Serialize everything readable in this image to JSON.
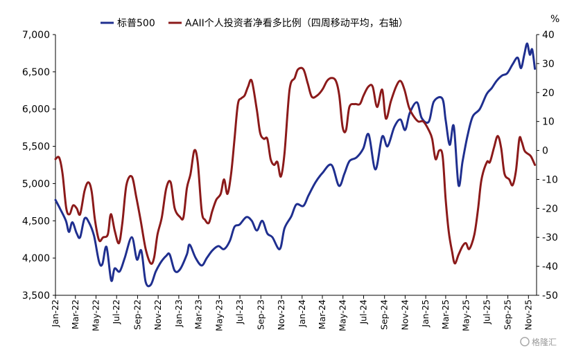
{
  "chart_data": {
    "type": "line",
    "title": "",
    "unit_right": "%",
    "legend_position": "top",
    "grid": false,
    "x_tick_labels": [
      "Jan-22",
      "Mar-22",
      "May-22",
      "Jul-22",
      "Sep-22",
      "Nov-22",
      "Jan-23",
      "Mar-23",
      "May-23",
      "Jul-23",
      "Sep-23",
      "Nov-23",
      "Jan-24",
      "Mar-24",
      "May-24",
      "Jul-24",
      "Sep-24",
      "Nov-24",
      "Jan-25",
      "Mar-25",
      "May-25",
      "Jul-25",
      "Sep-25",
      "Nov-25"
    ],
    "x_range": [
      "2022-01",
      "2025-11"
    ],
    "y_left": {
      "min": 3500,
      "max": 7000,
      "step": 500,
      "tick_labels": [
        "3,500",
        "4,000",
        "4,500",
        "5,000",
        "5,500",
        "6,000",
        "6,500",
        "7,000"
      ]
    },
    "y_right": {
      "min": -50,
      "max": 40,
      "step": 10,
      "tick_labels": [
        "-50",
        "-40",
        "-30",
        "-20",
        "-10",
        "0",
        "10",
        "20",
        "30",
        "40"
      ]
    },
    "series": [
      {
        "name": "标普500",
        "axis": "left",
        "color": "#1f2f8f",
        "points": [
          [
            "2022-01-01",
            4780
          ],
          [
            "2022-01-15",
            4660
          ],
          [
            "2022-02-01",
            4500
          ],
          [
            "2022-02-10",
            4350
          ],
          [
            "2022-02-20",
            4480
          ],
          [
            "2022-03-05",
            4330
          ],
          [
            "2022-03-15",
            4280
          ],
          [
            "2022-03-28",
            4530
          ],
          [
            "2022-04-10",
            4480
          ],
          [
            "2022-04-25",
            4300
          ],
          [
            "2022-05-10",
            3950
          ],
          [
            "2022-05-20",
            3920
          ],
          [
            "2022-06-01",
            4150
          ],
          [
            "2022-06-15",
            3700
          ],
          [
            "2022-06-25",
            3860
          ],
          [
            "2022-07-10",
            3820
          ],
          [
            "2022-07-25",
            4000
          ],
          [
            "2022-08-15",
            4280
          ],
          [
            "2022-08-30",
            3980
          ],
          [
            "2022-09-12",
            4100
          ],
          [
            "2022-09-25",
            3680
          ],
          [
            "2022-10-10",
            3640
          ],
          [
            "2022-10-25",
            3820
          ],
          [
            "2022-11-10",
            3950
          ],
          [
            "2022-11-25",
            4030
          ],
          [
            "2022-12-05",
            4050
          ],
          [
            "2022-12-20",
            3830
          ],
          [
            "2023-01-05",
            3850
          ],
          [
            "2023-01-25",
            4050
          ],
          [
            "2023-02-02",
            4180
          ],
          [
            "2023-02-20",
            4000
          ],
          [
            "2023-03-10",
            3900
          ],
          [
            "2023-03-25",
            4000
          ],
          [
            "2023-04-10",
            4100
          ],
          [
            "2023-04-28",
            4160
          ],
          [
            "2023-05-15",
            4120
          ],
          [
            "2023-06-01",
            4230
          ],
          [
            "2023-06-15",
            4420
          ],
          [
            "2023-06-30",
            4450
          ],
          [
            "2023-07-20",
            4550
          ],
          [
            "2023-08-05",
            4500
          ],
          [
            "2023-08-20",
            4370
          ],
          [
            "2023-09-05",
            4500
          ],
          [
            "2023-09-20",
            4330
          ],
          [
            "2023-10-05",
            4280
          ],
          [
            "2023-10-27",
            4120
          ],
          [
            "2023-11-10",
            4400
          ],
          [
            "2023-11-30",
            4560
          ],
          [
            "2023-12-15",
            4720
          ],
          [
            "2024-01-05",
            4700
          ],
          [
            "2024-01-20",
            4840
          ],
          [
            "2024-02-10",
            5020
          ],
          [
            "2024-03-01",
            5140
          ],
          [
            "2024-03-28",
            5250
          ],
          [
            "2024-04-19",
            4970
          ],
          [
            "2024-05-05",
            5130
          ],
          [
            "2024-05-20",
            5300
          ],
          [
            "2024-06-10",
            5350
          ],
          [
            "2024-06-30",
            5470
          ],
          [
            "2024-07-16",
            5660
          ],
          [
            "2024-08-05",
            5190
          ],
          [
            "2024-08-25",
            5630
          ],
          [
            "2024-09-10",
            5500
          ],
          [
            "2024-09-30",
            5760
          ],
          [
            "2024-10-18",
            5860
          ],
          [
            "2024-11-01",
            5720
          ],
          [
            "2024-11-15",
            5950
          ],
          [
            "2024-12-06",
            6090
          ],
          [
            "2024-12-20",
            5880
          ],
          [
            "2025-01-10",
            5830
          ],
          [
            "2025-01-25",
            6100
          ],
          [
            "2025-02-19",
            6140
          ],
          [
            "2025-03-01",
            5850
          ],
          [
            "2025-03-13",
            5520
          ],
          [
            "2025-03-25",
            5770
          ],
          [
            "2025-04-08",
            4980
          ],
          [
            "2025-04-20",
            5300
          ],
          [
            "2025-05-05",
            5650
          ],
          [
            "2025-05-20",
            5900
          ],
          [
            "2025-06-10",
            6000
          ],
          [
            "2025-06-30",
            6200
          ],
          [
            "2025-07-15",
            6280
          ],
          [
            "2025-07-30",
            6380
          ],
          [
            "2025-08-15",
            6450
          ],
          [
            "2025-08-30",
            6480
          ],
          [
            "2025-09-15",
            6600
          ],
          [
            "2025-09-30",
            6690
          ],
          [
            "2025-10-10",
            6550
          ],
          [
            "2025-10-20",
            6740
          ],
          [
            "2025-10-28",
            6880
          ],
          [
            "2025-11-05",
            6730
          ],
          [
            "2025-11-12",
            6800
          ],
          [
            "2025-11-20",
            6540
          ]
        ]
      },
      {
        "name": "AAII个人投资者净看多比例（四周移动平均，右轴）",
        "axis": "right",
        "color": "#8b1a1a",
        "points": [
          [
            "2022-01-01",
            -3
          ],
          [
            "2022-01-12",
            -2.5
          ],
          [
            "2022-01-22",
            -8
          ],
          [
            "2022-02-02",
            -20
          ],
          [
            "2022-02-12",
            -22
          ],
          [
            "2022-02-22",
            -19
          ],
          [
            "2022-03-05",
            -20
          ],
          [
            "2022-03-15",
            -22
          ],
          [
            "2022-03-28",
            -14
          ],
          [
            "2022-04-08",
            -11
          ],
          [
            "2022-04-18",
            -14
          ],
          [
            "2022-04-28",
            -24
          ],
          [
            "2022-05-10",
            -31
          ],
          [
            "2022-05-22",
            -30
          ],
          [
            "2022-06-05",
            -29
          ],
          [
            "2022-06-14",
            -22
          ],
          [
            "2022-06-26",
            -28
          ],
          [
            "2022-07-08",
            -32
          ],
          [
            "2022-07-18",
            -25
          ],
          [
            "2022-07-30",
            -12
          ],
          [
            "2022-08-15",
            -9
          ],
          [
            "2022-08-28",
            -16
          ],
          [
            "2022-09-10",
            -24
          ],
          [
            "2022-09-25",
            -34
          ],
          [
            "2022-10-10",
            -39
          ],
          [
            "2022-10-20",
            -37
          ],
          [
            "2022-10-30",
            -29
          ],
          [
            "2022-11-12",
            -23
          ],
          [
            "2022-11-25",
            -13
          ],
          [
            "2022-12-08",
            -11
          ],
          [
            "2022-12-20",
            -20
          ],
          [
            "2023-01-05",
            -23
          ],
          [
            "2023-01-15",
            -23
          ],
          [
            "2023-01-25",
            -13
          ],
          [
            "2023-02-05",
            -8
          ],
          [
            "2023-02-16",
            0
          ],
          [
            "2023-02-26",
            -4
          ],
          [
            "2023-03-10",
            -21
          ],
          [
            "2023-03-20",
            -24
          ],
          [
            "2023-03-31",
            -25
          ],
          [
            "2023-04-10",
            -21
          ],
          [
            "2023-04-22",
            -17
          ],
          [
            "2023-05-05",
            -15
          ],
          [
            "2023-05-15",
            -10
          ],
          [
            "2023-05-25",
            -15
          ],
          [
            "2023-06-05",
            -8
          ],
          [
            "2023-06-15",
            4
          ],
          [
            "2023-06-25",
            16
          ],
          [
            "2023-07-05",
            18
          ],
          [
            "2023-07-15",
            19
          ],
          [
            "2023-07-25",
            22
          ],
          [
            "2023-08-05",
            24
          ],
          [
            "2023-08-20",
            14
          ],
          [
            "2023-08-30",
            6
          ],
          [
            "2023-09-10",
            4
          ],
          [
            "2023-09-20",
            4
          ],
          [
            "2023-09-30",
            -3
          ],
          [
            "2023-10-10",
            -5
          ],
          [
            "2023-10-20",
            -4
          ],
          [
            "2023-10-30",
            -9
          ],
          [
            "2023-11-10",
            -1
          ],
          [
            "2023-11-25",
            21
          ],
          [
            "2023-12-10",
            25
          ],
          [
            "2023-12-20",
            28
          ],
          [
            "2024-01-05",
            28
          ],
          [
            "2024-01-18",
            23
          ],
          [
            "2024-01-30",
            18.5
          ],
          [
            "2024-02-15",
            19
          ],
          [
            "2024-03-01",
            21
          ],
          [
            "2024-03-15",
            24
          ],
          [
            "2024-03-28",
            25
          ],
          [
            "2024-04-10",
            24
          ],
          [
            "2024-04-20",
            19
          ],
          [
            "2024-04-30",
            8
          ],
          [
            "2024-05-10",
            7
          ],
          [
            "2024-05-20",
            15
          ],
          [
            "2024-06-05",
            16
          ],
          [
            "2024-06-20",
            16
          ],
          [
            "2024-07-01",
            19
          ],
          [
            "2024-07-15",
            22
          ],
          [
            "2024-07-28",
            22
          ],
          [
            "2024-08-10",
            15
          ],
          [
            "2024-08-25",
            21
          ],
          [
            "2024-09-05",
            11
          ],
          [
            "2024-09-20",
            17
          ],
          [
            "2024-10-05",
            22
          ],
          [
            "2024-10-18",
            24
          ],
          [
            "2024-10-30",
            21
          ],
          [
            "2024-11-12",
            15
          ],
          [
            "2024-11-25",
            12
          ],
          [
            "2024-12-10",
            10
          ],
          [
            "2024-12-25",
            10
          ],
          [
            "2025-01-10",
            7
          ],
          [
            "2025-01-20",
            4
          ],
          [
            "2025-01-30",
            -3
          ],
          [
            "2025-02-10",
            0
          ],
          [
            "2025-02-20",
            -2
          ],
          [
            "2025-03-01",
            -17
          ],
          [
            "2025-03-10",
            -28
          ],
          [
            "2025-03-20",
            -35
          ],
          [
            "2025-03-28",
            -39
          ],
          [
            "2025-04-08",
            -36
          ],
          [
            "2025-04-20",
            -33
          ],
          [
            "2025-04-30",
            -32
          ],
          [
            "2025-05-10",
            -34
          ],
          [
            "2025-05-25",
            -29
          ],
          [
            "2025-06-05",
            -20
          ],
          [
            "2025-06-15",
            -10
          ],
          [
            "2025-07-01",
            -4
          ],
          [
            "2025-07-10",
            -4
          ],
          [
            "2025-07-22",
            1
          ],
          [
            "2025-08-02",
            5
          ],
          [
            "2025-08-12",
            1
          ],
          [
            "2025-08-22",
            -8
          ],
          [
            "2025-09-05",
            -10
          ],
          [
            "2025-09-15",
            -12
          ],
          [
            "2025-09-25",
            -7
          ],
          [
            "2025-10-05",
            4
          ],
          [
            "2025-10-12",
            3
          ],
          [
            "2025-10-20",
            0
          ],
          [
            "2025-10-28",
            -1
          ],
          [
            "2025-11-08",
            -2
          ],
          [
            "2025-11-20",
            -5
          ]
        ]
      }
    ]
  },
  "watermark": "格隆汇"
}
